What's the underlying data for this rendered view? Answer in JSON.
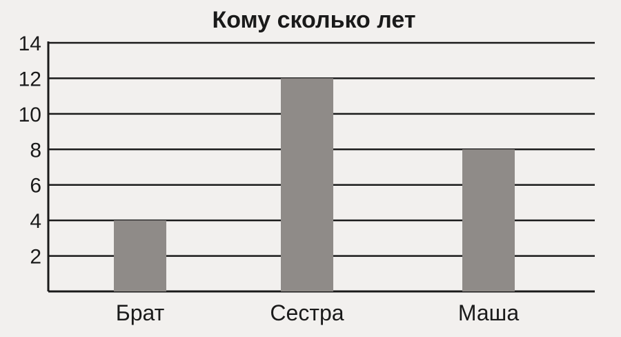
{
  "chart_data": {
    "type": "bar",
    "title": "Кому  сколько  лет",
    "categories": [
      "Брат",
      "Сестра",
      "Маша"
    ],
    "values": [
      4,
      12,
      8
    ],
    "ylim": [
      0,
      14
    ],
    "yticks": [
      2,
      4,
      6,
      8,
      10,
      12,
      14
    ],
    "grid": true,
    "colors": {
      "bar": "#8f8b88",
      "line": "#1a1a1a"
    }
  }
}
